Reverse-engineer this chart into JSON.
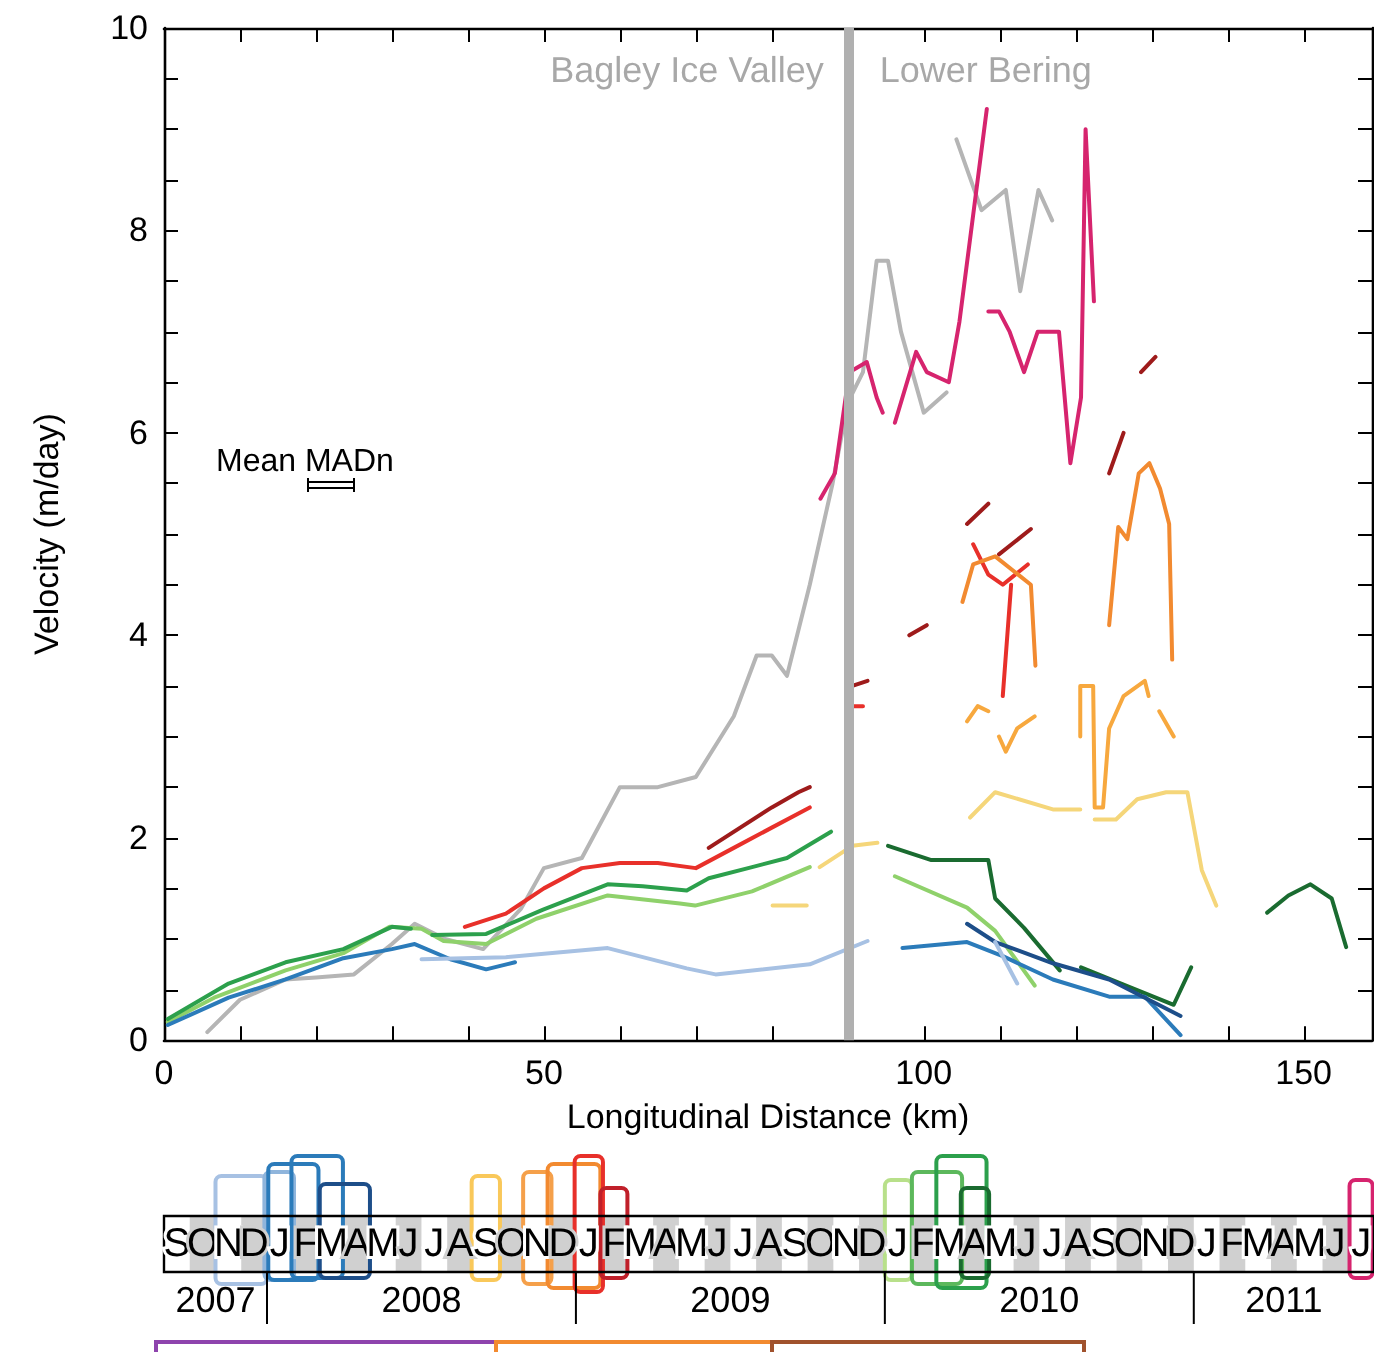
{
  "chart_data": [
    {
      "type": "line",
      "xlabel": "Longitudinal Distance (km)",
      "ylabel": "Velocity (m/day)",
      "marker": "none",
      "grid": false,
      "xlim": [
        0,
        159
      ],
      "xticks": [
        0,
        {
          "value": 10,
          "label": null
        },
        {
          "value": 20,
          "label": null
        },
        {
          "value": 30,
          "label": null
        },
        {
          "value": 40,
          "label": null
        },
        50,
        {
          "value": 60,
          "label": null
        },
        {
          "value": 70,
          "label": null
        },
        {
          "value": 80,
          "label": null
        },
        {
          "value": 90,
          "label": null
        },
        100,
        {
          "value": 110,
          "label": null
        },
        {
          "value": 120,
          "label": null
        },
        {
          "value": 130,
          "label": null
        },
        {
          "value": 140,
          "label": null
        },
        150
      ],
      "ylim": [
        0,
        10
      ],
      "yticks": [
        0,
        {
          "value": 0.5,
          "label": null
        },
        {
          "value": 1,
          "label": null
        },
        {
          "value": 1.5,
          "label": null
        },
        2,
        {
          "value": 2.5,
          "label": null
        },
        {
          "value": 3,
          "label": null
        },
        {
          "value": 3.5,
          "label": null
        },
        4,
        {
          "value": 4.5,
          "label": null
        },
        {
          "value": 5,
          "label": null
        },
        {
          "value": 5.5,
          "label": null
        },
        6,
        {
          "value": 6.5,
          "label": null
        },
        {
          "value": 7,
          "label": null
        },
        {
          "value": 7.5,
          "label": null
        },
        8,
        {
          "value": 8.5,
          "label": null
        },
        {
          "value": 9,
          "label": null
        },
        {
          "value": 9.5,
          "label": null
        },
        10
      ],
      "ref_lines": [
        {
          "axis": "x",
          "value": 90,
          "color": "#b0b0b0"
        }
      ],
      "annotations": [
        "Bagley Ice Valley",
        "Lower Bering",
        "Mean MADn"
      ],
      "series": [
        {
          "color": "#b5b5b5",
          "x": [
            5.7,
            10,
            16,
            20,
            25,
            30,
            33,
            37,
            42,
            47,
            50,
            55,
            60,
            65,
            70,
            75,
            78,
            80,
            82,
            85,
            88,
            90,
            92,
            93.8,
            95.3,
            97,
            100,
            103,
            null,
            104.3,
            107.6,
            110.8,
            112.7,
            115.1,
            116.9
          ],
          "values": [
            0.08,
            0.4,
            0.6,
            0.62,
            0.65,
            0.95,
            1.15,
            1.0,
            0.9,
            1.3,
            1.7,
            1.8,
            2.5,
            2.5,
            2.6,
            3.2,
            3.8,
            3.8,
            3.6,
            4.5,
            5.5,
            6.3,
            6.6,
            7.7,
            7.7,
            7.0,
            6.2,
            6.4,
            null,
            8.9,
            8.2,
            8.4,
            7.4,
            8.4,
            8.1
          ]
        },
        {
          "color": "#d6246e",
          "x": [
            86.4,
            88.3,
            90.2,
            92.5,
            93.8,
            94.6,
            null,
            96.2,
            99,
            100.4,
            103.3,
            104.7,
            108.3,
            null,
            108.5,
            109.9,
            111.3,
            113.2,
            115,
            117.8,
            119.3,
            120.7,
            121.3,
            122.4
          ],
          "values": [
            5.35,
            5.6,
            6.6,
            6.7,
            6.35,
            6.2,
            null,
            6.1,
            6.8,
            6.6,
            6.5,
            7.1,
            9.2,
            null,
            7.2,
            7.2,
            7.0,
            6.6,
            7.0,
            7.0,
            5.7,
            6.35,
            9.0,
            7.3
          ]
        },
        {
          "color": "#9e1b1b",
          "x": [
            71.7,
            80,
            83.5,
            85,
            null,
            90.6,
            92.6,
            null,
            98.1,
            100.4,
            null,
            105.7,
            108.5,
            null,
            109.9,
            114.1,
            null,
            124.4,
            126.3,
            null,
            128.6,
            130.5
          ],
          "values": [
            1.9,
            2.3,
            2.45,
            2.5,
            null,
            3.5,
            3.55,
            null,
            4.0,
            4.1,
            null,
            5.1,
            5.3,
            null,
            4.8,
            5.05,
            null,
            5.6,
            6.0,
            null,
            6.6,
            6.75
          ]
        },
        {
          "color": "#e8302a",
          "x": [
            39.6,
            45,
            50,
            55,
            60,
            65,
            70,
            75,
            80,
            85,
            null,
            90,
            92,
            null,
            106.5,
            108.5,
            110.4,
            113.7,
            null,
            110.4,
            111.5
          ],
          "values": [
            1.12,
            1.25,
            1.5,
            1.7,
            1.75,
            1.75,
            1.7,
            1.9,
            2.1,
            2.3,
            null,
            3.3,
            3.3,
            null,
            4.9,
            4.6,
            4.5,
            4.7,
            null,
            3.4,
            4.5
          ]
        },
        {
          "color": "#f28a30",
          "x": [
            105.1,
            106.5,
            109.4,
            114.1,
            114.7,
            null,
            124.4,
            125.6,
            126.8,
            128.3,
            129.7,
            131.1,
            132.3,
            132.7
          ],
          "values": [
            4.33,
            4.7,
            4.78,
            4.5,
            3.7,
            null,
            4.1,
            5.07,
            4.95,
            5.6,
            5.7,
            5.45,
            5.1,
            3.76
          ]
        },
        {
          "color": "#f7a83e",
          "x": [
            105.7,
            107.1,
            108.5,
            null,
            109.9,
            110.8,
            112.3,
            114.6,
            null,
            120.6,
            120.6,
            122.3,
            122.5,
            123.6,
            124.4,
            126.3,
            129.1,
            129.6,
            null,
            131,
            132.9
          ],
          "values": [
            3.15,
            3.3,
            3.25,
            null,
            3.0,
            2.85,
            3.08,
            3.2,
            null,
            3.0,
            3.5,
            3.5,
            2.3,
            2.3,
            3.08,
            3.4,
            3.55,
            3.4,
            null,
            3.25,
            3.0
          ]
        },
        {
          "color": "#f5d67a",
          "x": [
            80.1,
            84.6,
            null,
            86.3,
            90.6,
            93.9,
            null,
            106.1,
            109.4,
            117,
            120.6,
            null,
            122.5,
            125.3,
            128.1,
            131.9,
            134.7,
            136.6,
            138.5
          ],
          "values": [
            1.33,
            1.33,
            null,
            1.71,
            1.92,
            1.95,
            null,
            2.2,
            2.45,
            2.28,
            2.28,
            null,
            2.18,
            2.18,
            2.38,
            2.45,
            2.45,
            1.68,
            1.33
          ]
        },
        {
          "color": "#8fd16b",
          "x": [
            0.5,
            6.6,
            16,
            23.6,
            29.7,
            33.9,
            36.8,
            42.4,
            49,
            58.4,
            67.9,
            69.9,
            77.4,
            85,
            null,
            96.2,
            105.7,
            109.4,
            114.6
          ],
          "values": [
            0.18,
            0.42,
            0.69,
            0.86,
            1.12,
            1.1,
            0.98,
            0.95,
            1.2,
            1.43,
            1.35,
            1.33,
            1.47,
            1.71,
            null,
            1.62,
            1.31,
            1.08,
            0.54
          ]
        },
        {
          "color": "#2ca04c",
          "x": [
            0.5,
            8.5,
            16,
            23.6,
            30,
            32.5,
            null,
            35.3,
            42.4,
            49.9,
            58.4,
            63,
            68.8,
            71.7,
            77.4,
            82,
            87.8
          ],
          "values": [
            0.21,
            0.56,
            0.77,
            0.9,
            1.12,
            1.1,
            null,
            1.04,
            1.05,
            1.29,
            1.54,
            1.52,
            1.48,
            1.6,
            1.71,
            1.8,
            2.06
          ]
        },
        {
          "color": "#1a6b30",
          "x": [
            95.3,
            101,
            108.5,
            109.4,
            113.2,
            117.9,
            null,
            120.7,
            126.3,
            132.9,
            135.2,
            null,
            145.2,
            148,
            150.9,
            153.7,
            155.6
          ],
          "values": [
            1.92,
            1.78,
            1.78,
            1.4,
            1.11,
            0.69,
            null,
            0.72,
            0.55,
            0.35,
            0.72,
            null,
            1.26,
            1.43,
            1.54,
            1.4,
            0.92
          ]
        },
        {
          "color": "#2b7bba",
          "x": [
            0.5,
            8.5,
            16,
            23.6,
            30,
            33,
            37.7,
            42.4,
            46.2,
            null,
            97.2,
            105.7,
            110.4,
            117,
            124.4,
            129.1,
            133.8
          ],
          "values": [
            0.15,
            0.42,
            0.6,
            0.81,
            0.9,
            0.95,
            0.8,
            0.7,
            0.77,
            null,
            0.91,
            0.97,
            0.83,
            0.6,
            0.43,
            0.43,
            0.05
          ]
        },
        {
          "color": "#1d4e89",
          "x": [
            105.7,
            109.4,
            117,
            124.4,
            133.8
          ],
          "values": [
            1.15,
            0.97,
            0.76,
            0.6,
            0.24
          ]
        },
        {
          "color": "#a7c1e3",
          "x": [
            33.9,
            45,
            58.4,
            68.8,
            72.6,
            85,
            92.6,
            null,
            109.4,
            112.3
          ],
          "values": [
            0.8,
            0.82,
            0.91,
            0.71,
            0.65,
            0.75,
            0.98,
            null,
            0.97,
            0.56
          ]
        }
      ]
    },
    {
      "type": "other",
      "categories": [
        "S",
        "O",
        "N",
        "D",
        "J",
        "F",
        "M",
        "A",
        "M",
        "J",
        "J",
        "A",
        "S",
        "O",
        "N",
        "D",
        "J",
        "F",
        "M",
        "A",
        "M",
        "J",
        "J",
        "A",
        "S",
        "O",
        "N",
        "D",
        "J",
        "F",
        "M",
        "A",
        "M",
        "J",
        "J",
        "A",
        "S",
        "O",
        "N",
        "D",
        "J",
        "F",
        "M",
        "A",
        "M",
        "J",
        "J"
      ],
      "annotations": [
        "2007",
        "2008",
        "2009",
        "2010",
        "2011"
      ]
    }
  ]
}
